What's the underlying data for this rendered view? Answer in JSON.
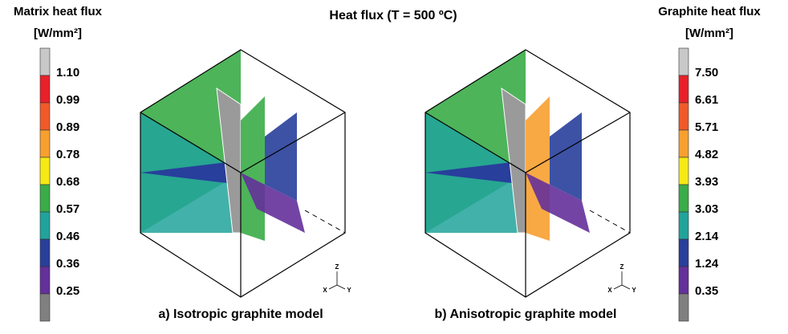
{
  "title": "Heat flux (T = 500 ºC)",
  "panels": [
    {
      "caption": "a) Isotropic graphite model"
    },
    {
      "caption": "b) Anisotropic graphite model"
    }
  ],
  "colorbars": [
    {
      "title": "Matrix heat flux",
      "unit": "[W/mm²]",
      "labels": [
        "1.10",
        "0.99",
        "0.89",
        "0.78",
        "0.68",
        "0.57",
        "0.46",
        "0.36",
        "0.25"
      ],
      "colors": [
        "#c8c8c8",
        "#e8202a",
        "#f05a28",
        "#f7a030",
        "#f5ea14",
        "#3aac48",
        "#21a39b",
        "#283f9b",
        "#64309a",
        "#808080"
      ]
    },
    {
      "title": "Graphite heat flux",
      "unit": "[W/mm²]",
      "labels": [
        "7.50",
        "6.61",
        "5.71",
        "4.82",
        "3.93",
        "3.03",
        "2.14",
        "1.24",
        "0.35"
      ],
      "colors": [
        "#c8c8c8",
        "#e8202a",
        "#f05a28",
        "#f7a030",
        "#f5ea14",
        "#3aac48",
        "#21a39b",
        "#283f9b",
        "#64309a",
        "#808080"
      ]
    }
  ],
  "axes": {
    "z": "Z",
    "x": "X",
    "y": "Y"
  }
}
